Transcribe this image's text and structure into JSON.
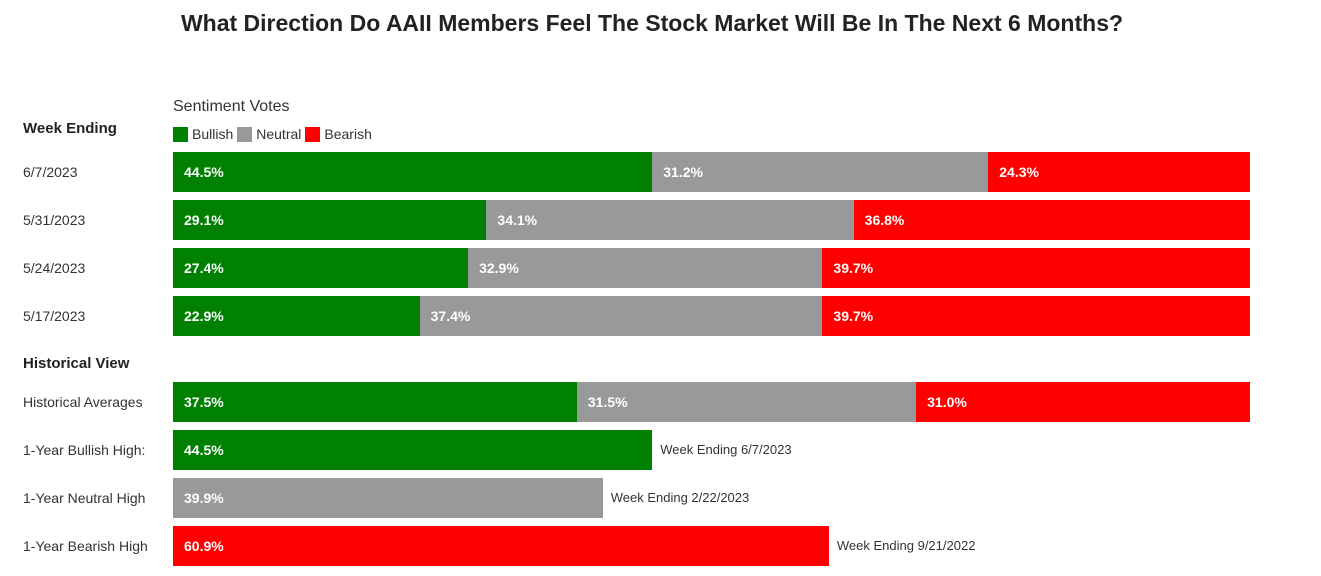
{
  "chart_data": {
    "type": "bar",
    "orientation": "horizontal",
    "stacked": true,
    "title": "What Direction Do AAII Members Feel The Stock Market Will Be In The Next 6 Months?",
    "subtitle": "Sentiment Votes",
    "unit": "%",
    "legend": [
      {
        "name": "Bullish",
        "color": "#008000"
      },
      {
        "name": "Neutral",
        "color": "#999999"
      },
      {
        "name": "Bearish",
        "color": "#ff0000"
      }
    ],
    "weekly": {
      "heading": "Week Ending",
      "categories": [
        "6/7/2023",
        "5/31/2023",
        "5/24/2023",
        "5/17/2023"
      ],
      "series": [
        {
          "name": "Bullish",
          "values": [
            44.5,
            29.1,
            27.4,
            22.9
          ],
          "labels": [
            "44.5%",
            "29.1%",
            "27.4%",
            "22.9%"
          ]
        },
        {
          "name": "Neutral",
          "values": [
            31.2,
            34.1,
            32.9,
            37.4
          ],
          "labels": [
            "31.2%",
            "34.1%",
            "32.9%",
            "37.4%"
          ]
        },
        {
          "name": "Bearish",
          "values": [
            24.3,
            36.8,
            39.7,
            39.7
          ],
          "labels": [
            "24.3%",
            "36.8%",
            "39.7%",
            "39.7%"
          ]
        }
      ]
    },
    "historical": {
      "heading": "Historical View",
      "averages": {
        "label": "Historical Averages",
        "values": [
          37.5,
          31.5,
          31.0
        ],
        "labels": [
          "37.5%",
          "31.5%",
          "31.0%"
        ]
      },
      "highs": [
        {
          "label": "1-Year Bullish High:",
          "series": "Bullish",
          "value": 44.5,
          "value_label": "44.5%",
          "note": "Week Ending 6/7/2023"
        },
        {
          "label": "1-Year Neutral High",
          "series": "Neutral",
          "value": 39.9,
          "value_label": "39.9%",
          "note": "Week Ending 2/22/2023"
        },
        {
          "label": "1-Year Bearish High",
          "series": "Bearish",
          "value": 60.9,
          "value_label": "60.9%",
          "note": "Week Ending 9/21/2022"
        }
      ]
    }
  }
}
